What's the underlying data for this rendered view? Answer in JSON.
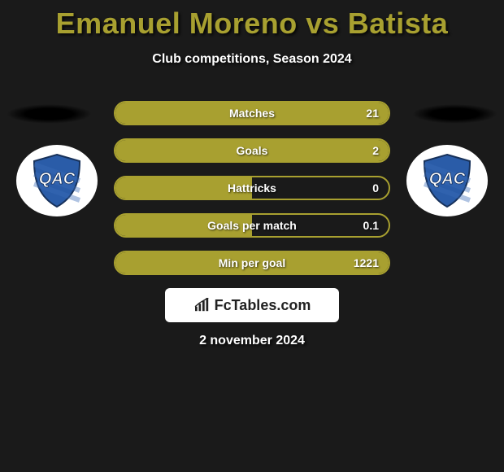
{
  "header": {
    "title": "Emanuel Moreno vs Batista",
    "subtitle": "Club competitions, Season 2024",
    "title_color": "#a8a030"
  },
  "crest": {
    "text": "QAC",
    "shield_fill": "#2a5ca8",
    "shield_stroke": "#17315a",
    "text_color": "#ffffff"
  },
  "stats": {
    "bar_color": "#a8a030",
    "border_color": "#a8a030",
    "text_color": "#ffffff",
    "rows": [
      {
        "label": "Matches",
        "left": "",
        "right": "21",
        "fill_pct": 100
      },
      {
        "label": "Goals",
        "left": "",
        "right": "2",
        "fill_pct": 100
      },
      {
        "label": "Hattricks",
        "left": "",
        "right": "0",
        "fill_pct": 50
      },
      {
        "label": "Goals per match",
        "left": "",
        "right": "0.1",
        "fill_pct": 50
      },
      {
        "label": "Min per goal",
        "left": "",
        "right": "1221",
        "fill_pct": 100
      }
    ]
  },
  "branding": {
    "logo_text": "FcTables.com"
  },
  "footer": {
    "date": "2 november 2024"
  },
  "colors": {
    "background": "#1a1a1a",
    "accent": "#a8a030",
    "text_light": "#ffffff"
  }
}
